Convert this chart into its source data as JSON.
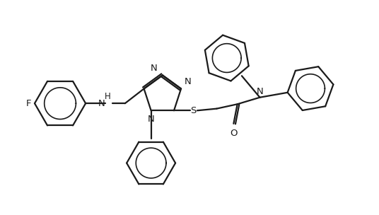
{
  "background_color": "#ffffff",
  "line_color": "#1a1a1a",
  "line_width": 1.6,
  "figsize": [
    5.36,
    3.04
  ],
  "dpi": 100,
  "xlim": [
    0,
    10
  ],
  "ylim": [
    0,
    5.68
  ]
}
